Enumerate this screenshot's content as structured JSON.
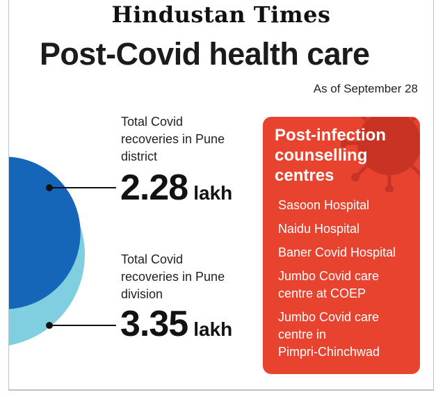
{
  "masthead": "Hindustan Times",
  "headline": "Post-Covid health care",
  "as_of": "As of September 28",
  "colors": {
    "inner_circle": "#1565b8",
    "outer_circle": "#7fcfe0",
    "panel": "#e8432f",
    "text": "#1b1b1b"
  },
  "chart_data": {
    "type": "area",
    "title": "Post-Covid health care",
    "subtitle": "As of September 28",
    "unit": "lakh",
    "series": [
      {
        "name": "Total Covid recoveries in Pune district",
        "label_lines": [
          "Total Covid",
          "recoveries in Pune",
          "district"
        ],
        "value": 2.28,
        "value_text": "2.28",
        "color": "#1565b8"
      },
      {
        "name": "Total Covid recoveries in Pune division",
        "label_lines": [
          "Total Covid",
          "recoveries in Pune",
          "division"
        ],
        "value": 3.35,
        "value_text": "3.35",
        "color": "#7fcfe0"
      }
    ]
  },
  "panel": {
    "title_lines": [
      "Post-infection",
      "counselling",
      "centres"
    ],
    "items": [
      {
        "lines": [
          "Sasoon Hospital"
        ]
      },
      {
        "lines": [
          "Naidu Hospital"
        ]
      },
      {
        "lines": [
          "Baner Covid Hospital"
        ]
      },
      {
        "lines": [
          "Jumbo Covid care",
          "centre at COEP"
        ]
      },
      {
        "lines": [
          "Jumbo Covid care",
          "centre in",
          "Pimpri-Chinchwad"
        ]
      }
    ]
  }
}
